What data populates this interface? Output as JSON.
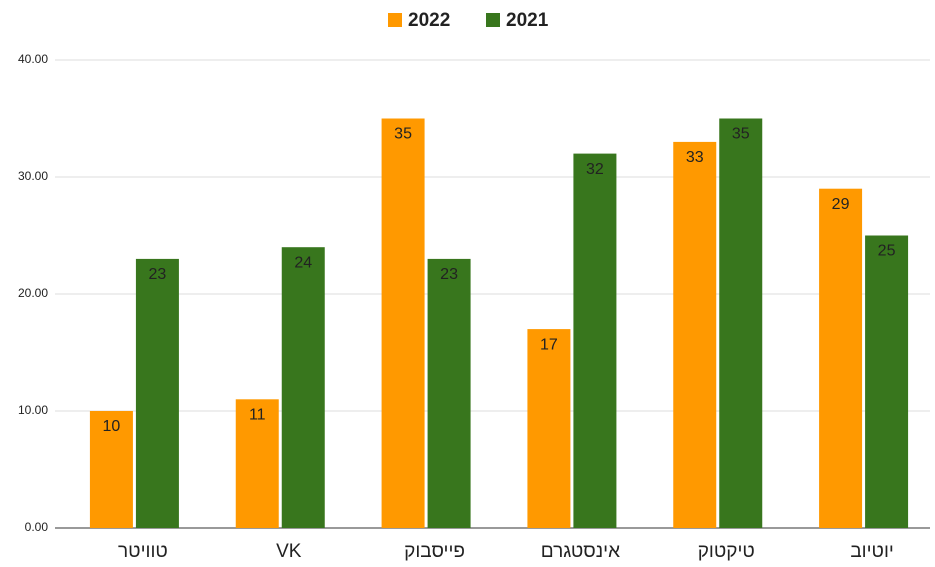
{
  "chart_data": {
    "type": "bar",
    "categories": [
      "טוויטר",
      "VK",
      "פייסבוק",
      "אינסטגרם",
      "טיקטוק",
      "יוטיוב"
    ],
    "series": [
      {
        "name": "2022",
        "color": "#ff9900",
        "values": [
          10,
          11,
          35,
          17,
          33,
          29
        ]
      },
      {
        "name": "2021",
        "color": "#38761d",
        "values": [
          23,
          24,
          23,
          32,
          35,
          25
        ]
      }
    ],
    "ylim": [
      0,
      40
    ],
    "yticks": [
      {
        "value": 0,
        "label": "0.00"
      },
      {
        "value": 10,
        "label": "10.00"
      },
      {
        "value": 20,
        "label": "20.00"
      },
      {
        "value": 30,
        "label": "30.00"
      },
      {
        "value": 40,
        "label": "40.00"
      }
    ],
    "grid": true,
    "legend": "top"
  }
}
